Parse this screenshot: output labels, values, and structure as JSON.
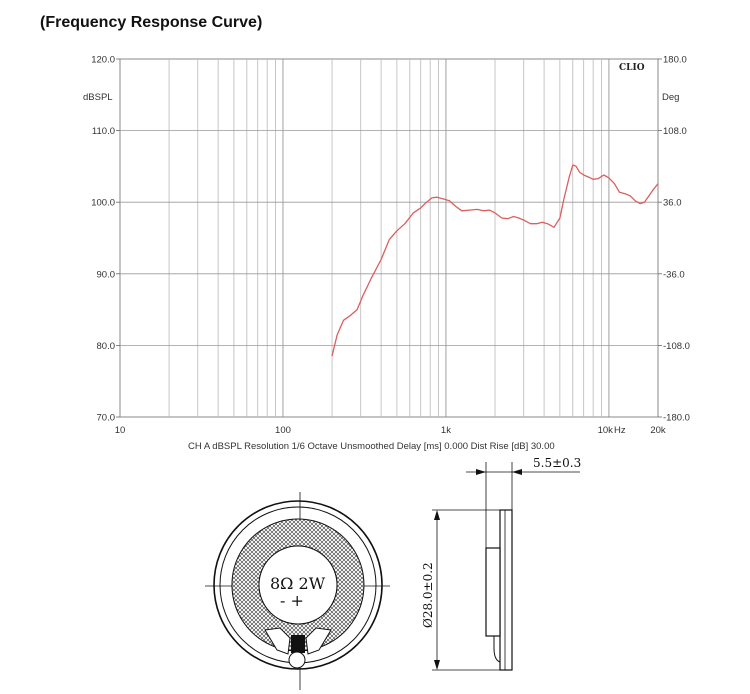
{
  "title": "(Frequency Response Curve)",
  "chart_data": {
    "type": "line",
    "brand": "CLIO",
    "y_unit_label": "dBSPL",
    "y2_unit_label": "Deg",
    "x_unit_label": "Hz",
    "ylim": [
      70,
      120
    ],
    "y2lim": [
      -180,
      180
    ],
    "xlim": [
      10,
      20000
    ],
    "x_scale": "log",
    "grid": true,
    "y_ticks": [
      "120.0",
      "110.0",
      "100.0",
      "90.0",
      "80.0",
      "70.0"
    ],
    "y2_ticks": [
      "180.0",
      "108.0",
      "36.0",
      "-36.0",
      "-108.0",
      "-180.0"
    ],
    "x_ticks": [
      {
        "value": 10,
        "label": "10"
      },
      {
        "value": 100,
        "label": "100"
      },
      {
        "value": 1000,
        "label": "1k"
      },
      {
        "value": 10000,
        "label": "10k"
      },
      {
        "value": 20000,
        "label": "20k"
      }
    ],
    "footer": "CH A   dBSPL   Resolution 1/6 Octave   Unsmoothed   Delay [ms] 0.000   Dist Rise [dB] 30.00",
    "series": [
      {
        "color": "#d9605f",
        "x": [
          200,
          215,
          235,
          260,
          285,
          310,
          350,
          400,
          450,
          500,
          560,
          630,
          700,
          760,
          820,
          880,
          950,
          1050,
          1150,
          1250,
          1400,
          1550,
          1700,
          1850,
          2000,
          2200,
          2400,
          2600,
          2800,
          3000,
          3300,
          3600,
          3900,
          4200,
          4600,
          5000,
          5300,
          5700,
          6000,
          6300,
          6600,
          7000,
          7500,
          8000,
          8600,
          9300,
          10000,
          10800,
          11600,
          12500,
          13500,
          14500,
          15500,
          16500,
          17500,
          18500,
          20000
        ],
        "y": [
          78.5,
          81.5,
          83.5,
          84.2,
          85.0,
          87.0,
          89.5,
          92.0,
          94.8,
          96.0,
          97.0,
          98.5,
          99.2,
          100.0,
          100.6,
          100.7,
          100.5,
          100.2,
          99.4,
          98.8,
          98.9,
          99.0,
          98.8,
          98.9,
          98.5,
          97.8,
          97.7,
          98.0,
          97.8,
          97.5,
          97.0,
          97.0,
          97.2,
          97.0,
          96.5,
          97.8,
          100.5,
          103.5,
          105.2,
          105.0,
          104.2,
          103.8,
          103.5,
          103.2,
          103.3,
          103.8,
          103.4,
          102.6,
          101.4,
          101.2,
          100.9,
          100.2,
          99.8,
          100.0,
          100.8,
          101.6,
          102.6
        ]
      }
    ]
  },
  "drawing": {
    "impedance_power": "8Ω 2W",
    "polarity": "- +",
    "thickness_dim": "5.5±0.3",
    "diameter_dim": "Ø28.0±0.2"
  }
}
